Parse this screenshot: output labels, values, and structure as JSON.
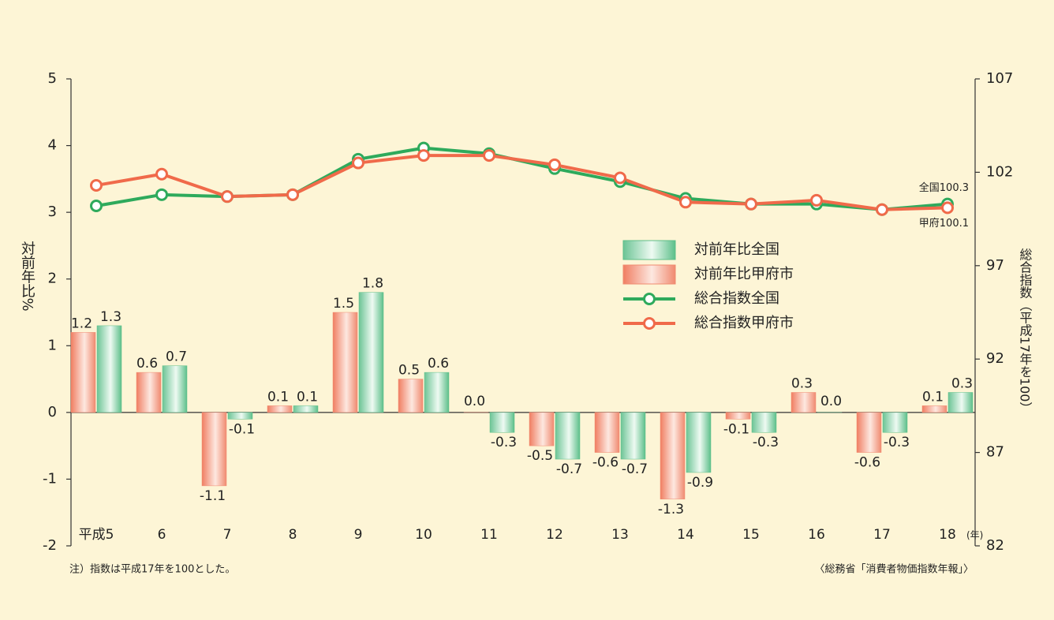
{
  "chart_data": {
    "type": "bar_line",
    "categories": [
      "平成5",
      "6",
      "7",
      "8",
      "9",
      "10",
      "11",
      "12",
      "13",
      "14",
      "15",
      "16",
      "17",
      "18"
    ],
    "x_unit_label": "(年)",
    "ylabel": "対前年比%",
    "y2label": "総合指数（平成17年を100）",
    "ylim": [
      -2,
      5
    ],
    "yticks": [
      -2,
      -1,
      0,
      1,
      2,
      3,
      4,
      5
    ],
    "y2lim": [
      82,
      107
    ],
    "y2ticks": [
      82,
      87,
      92,
      97,
      102,
      107
    ],
    "series": [
      {
        "name": "対前年比全国",
        "kind": "bar",
        "color": "#5dbf8a",
        "values": [
          1.3,
          0.7,
          -0.1,
          0.1,
          1.8,
          0.6,
          -0.3,
          -0.7,
          -0.7,
          -0.9,
          -0.3,
          0.0,
          -0.3,
          0.3
        ],
        "value_labels": [
          "1.3",
          "0.7",
          "-0.1",
          "0.1",
          "1.8",
          "0.6",
          "-0.3",
          "-0.7",
          "-0.7",
          "-0.9",
          "-0.3",
          "0.0",
          "-0.3",
          "0.3"
        ]
      },
      {
        "name": "対前年比甲府市",
        "kind": "bar",
        "color": "#f08a70",
        "values": [
          1.2,
          0.6,
          -1.1,
          0.1,
          1.5,
          0.5,
          0.0,
          -0.5,
          -0.6,
          -1.3,
          -0.1,
          0.3,
          -0.6,
          0.1
        ],
        "value_labels": [
          "1.2",
          "0.6",
          "-1.1",
          "0.1",
          "1.5",
          "0.5",
          "0.0",
          "-0.5",
          "-0.6",
          "-1.3",
          "-0.1",
          "0.3",
          "-0.6",
          "0.1"
        ]
      },
      {
        "name": "総合指数全国",
        "kind": "line",
        "axis": "y2",
        "color": "#2eaa5c",
        "values": [
          100.2,
          100.8,
          100.7,
          100.8,
          102.7,
          103.3,
          103.0,
          102.2,
          101.5,
          100.6,
          100.3,
          100.3,
          100.0,
          100.3
        ]
      },
      {
        "name": "総合指数甲府市",
        "kind": "line",
        "axis": "y2",
        "color": "#f06a4a",
        "values": [
          101.3,
          101.9,
          100.7,
          100.8,
          102.5,
          102.9,
          102.9,
          102.4,
          101.7,
          100.4,
          100.3,
          100.5,
          100.0,
          100.1
        ]
      }
    ],
    "annotations": [
      "全国100.3",
      "甲府100.1"
    ],
    "note": "注）指数は平成17年を100とした。",
    "source": "〈総務省「消費者物価指数年報」〉"
  }
}
